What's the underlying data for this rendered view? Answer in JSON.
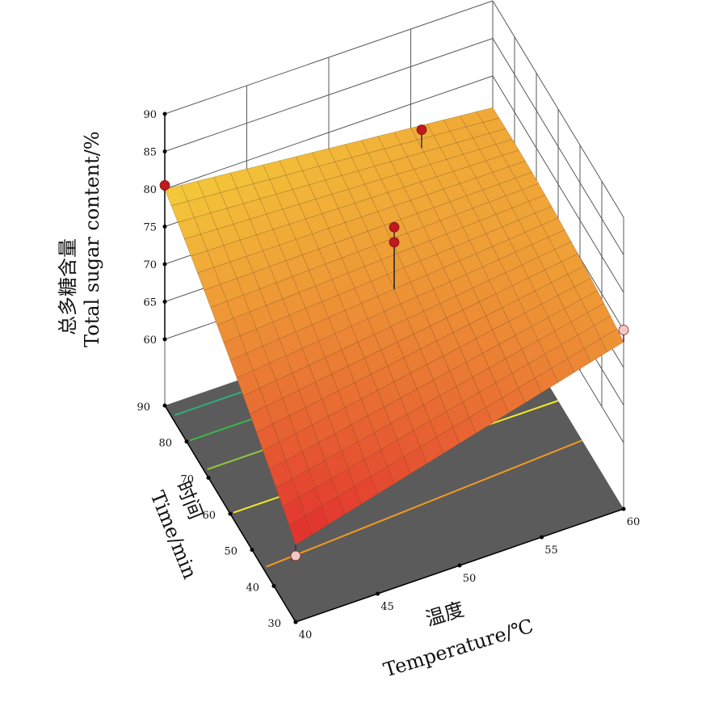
{
  "chart_data": {
    "type": "surface3d",
    "title": "",
    "z_axis": {
      "label_cn": "总多糖含量",
      "label_en": "Total sugar content/%",
      "ticks": [
        60,
        65,
        70,
        75,
        80,
        85,
        90
      ],
      "range": [
        60,
        90
      ]
    },
    "x_axis": {
      "label_cn": "温度",
      "label_en": "Temperature/℃",
      "ticks": [
        40,
        45,
        50,
        55,
        60
      ],
      "range": [
        40,
        60
      ]
    },
    "y_axis": {
      "label_cn": "时间",
      "label_en": "Time/min",
      "ticks": [
        30,
        40,
        50,
        60,
        70,
        80,
        90
      ],
      "range": [
        30,
        90
      ]
    },
    "surface": {
      "grid_temperature": [
        40,
        50,
        60
      ],
      "grid_time": [
        30,
        60,
        90
      ],
      "corner_values": {
        "t40_time90": 80.2,
        "t60_time90": 76.0,
        "t40_time30": 63.5,
        "t60_time30": 74.0,
        "t50_time60": 79.6
      }
    },
    "design_points": [
      {
        "temperature": 40,
        "time": 90,
        "value": 80.5,
        "color": "#c0181e"
      },
      {
        "temperature": 50,
        "time": 60,
        "value": 81.8,
        "color": "#c0181e"
      },
      {
        "temperature": 50,
        "time": 60,
        "value": 79.8,
        "color": "#c0181e"
      },
      {
        "temperature": 60,
        "time": 30,
        "value": 75.0,
        "color": "#f3c7c7"
      },
      {
        "temperature": 40,
        "time": 30,
        "value": 60.0,
        "color": "#f3c7c7"
      },
      {
        "temperature": 55,
        "time": 85,
        "value": 79.0,
        "color": "#c0181e"
      }
    ],
    "contour_colors": [
      "#2fae7c",
      "#39b84a",
      "#8fc63c",
      "#f2ea22",
      "#f59a1e"
    ],
    "floor_color": "#5b5b5b",
    "colors": {
      "surface_low": "#e3342f",
      "surface_high": "#f5d43a",
      "grid": "#5a5a5a"
    }
  }
}
